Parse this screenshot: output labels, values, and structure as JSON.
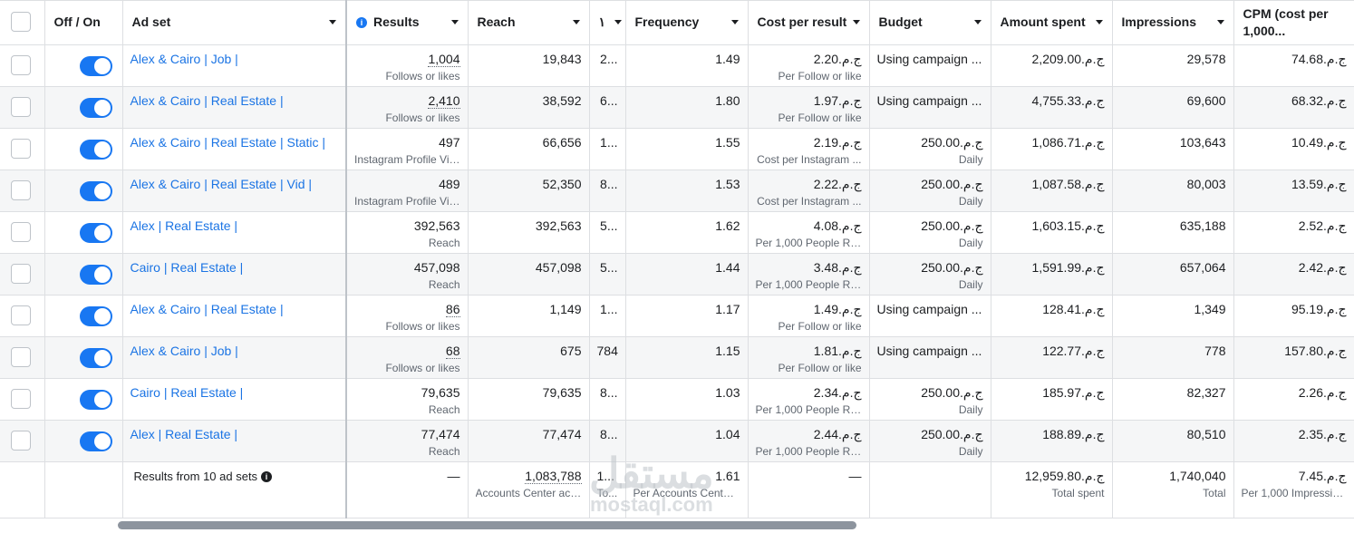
{
  "columns": {
    "off_on": "Off / On",
    "ad_set": "Ad set",
    "results": "Results",
    "reach": "Reach",
    "hidden": "١",
    "frequency": "Frequency",
    "cost_per_result": "Cost per result",
    "budget": "Budget",
    "amount_spent": "Amount spent",
    "impressions": "Impressions",
    "cpm": "CPM (cost per 1,000..."
  },
  "rows": [
    {
      "name": "Alex & Cairo | Job |",
      "enabled": true,
      "results": "1,004",
      "results_sub": "Follows or likes",
      "results_ul": true,
      "reach": "19,843",
      "col3": "2...",
      "frequency": "1.49",
      "cost": "ج.م.2.20",
      "cost_sub": "Per Follow or like",
      "budget": "Using campaign ...",
      "budget_sub": "",
      "spent": "ج.م.2,209.00",
      "impressions": "29,578",
      "cpm": "ج.م.74.68"
    },
    {
      "name": "Alex & Cairo | Real Estate |",
      "enabled": true,
      "results": "2,410",
      "results_sub": "Follows or likes",
      "results_ul": true,
      "reach": "38,592",
      "col3": "6...",
      "frequency": "1.80",
      "cost": "ج.م.1.97",
      "cost_sub": "Per Follow or like",
      "budget": "Using campaign ...",
      "budget_sub": "",
      "spent": "ج.م.4,755.33",
      "impressions": "69,600",
      "cpm": "ج.م.68.32"
    },
    {
      "name": "Alex & Cairo | Real Estate | Static |",
      "enabled": true,
      "results": "497",
      "results_sub": "Instagram Profile Vis...",
      "results_ul": false,
      "reach": "66,656",
      "col3": "1...",
      "frequency": "1.55",
      "cost": "ج.م.2.19",
      "cost_sub": "Cost per Instagram ...",
      "budget": "ج.م.250.00",
      "budget_sub": "Daily",
      "spent": "ج.م.1,086.71",
      "impressions": "103,643",
      "cpm": "ج.م.10.49"
    },
    {
      "name": "Alex & Cairo | Real Estate | Vid |",
      "enabled": true,
      "results": "489",
      "results_sub": "Instagram Profile Vis...",
      "results_ul": false,
      "reach": "52,350",
      "col3": "8...",
      "frequency": "1.53",
      "cost": "ج.م.2.22",
      "cost_sub": "Cost per Instagram ...",
      "budget": "ج.م.250.00",
      "budget_sub": "Daily",
      "spent": "ج.م.1,087.58",
      "impressions": "80,003",
      "cpm": "ج.م.13.59"
    },
    {
      "name": "Alex | Real Estate |",
      "enabled": true,
      "results": "392,563",
      "results_sub": "Reach",
      "results_ul": false,
      "reach": "392,563",
      "col3": "5...",
      "frequency": "1.62",
      "cost": "ج.م.4.08",
      "cost_sub": "Per 1,000 People Re...",
      "budget": "ج.م.250.00",
      "budget_sub": "Daily",
      "spent": "ج.م.1,603.15",
      "impressions": "635,188",
      "cpm": "ج.م.2.52"
    },
    {
      "name": "Cairo | Real Estate |",
      "enabled": true,
      "results": "457,098",
      "results_sub": "Reach",
      "results_ul": false,
      "reach": "457,098",
      "col3": "5...",
      "frequency": "1.44",
      "cost": "ج.م.3.48",
      "cost_sub": "Per 1,000 People Re...",
      "budget": "ج.م.250.00",
      "budget_sub": "Daily",
      "spent": "ج.م.1,591.99",
      "impressions": "657,064",
      "cpm": "ج.م.2.42"
    },
    {
      "name": "Alex & Cairo | Real Estate |",
      "enabled": true,
      "results": "86",
      "results_sub": "Follows or likes",
      "results_ul": true,
      "reach": "1,149",
      "col3": "1...",
      "frequency": "1.17",
      "cost": "ج.م.1.49",
      "cost_sub": "Per Follow or like",
      "budget": "Using campaign ...",
      "budget_sub": "",
      "spent": "ج.م.128.41",
      "impressions": "1,349",
      "cpm": "ج.م.95.19"
    },
    {
      "name": "Alex & Cairo | Job |",
      "enabled": true,
      "results": "68",
      "results_sub": "Follows or likes",
      "results_ul": true,
      "reach": "675",
      "col3": "784",
      "frequency": "1.15",
      "cost": "ج.م.1.81",
      "cost_sub": "Per Follow or like",
      "budget": "Using campaign ...",
      "budget_sub": "",
      "spent": "ج.م.122.77",
      "impressions": "778",
      "cpm": "ج.م.157.80"
    },
    {
      "name": "Cairo | Real Estate |",
      "enabled": true,
      "results": "79,635",
      "results_sub": "Reach",
      "results_ul": false,
      "reach": "79,635",
      "col3": "8...",
      "frequency": "1.03",
      "cost": "ج.م.2.34",
      "cost_sub": "Per 1,000 People Re...",
      "budget": "ج.م.250.00",
      "budget_sub": "Daily",
      "spent": "ج.م.185.97",
      "impressions": "82,327",
      "cpm": "ج.م.2.26"
    },
    {
      "name": "Alex | Real Estate |",
      "enabled": true,
      "results": "77,474",
      "results_sub": "Reach",
      "results_ul": false,
      "reach": "77,474",
      "col3": "8...",
      "frequency": "1.04",
      "cost": "ج.م.2.44",
      "cost_sub": "Per 1,000 People Re...",
      "budget": "ج.م.250.00",
      "budget_sub": "Daily",
      "spent": "ج.م.188.89",
      "impressions": "80,510",
      "cpm": "ج.م.2.35"
    }
  ],
  "totals": {
    "label": "Results from 10 ad sets",
    "results": "—",
    "reach": "1,083,788",
    "reach_sub": "Accounts Center acc...",
    "col3": "1...",
    "col3_sub": "To...",
    "frequency": "1.61",
    "frequency_sub": "Per Accounts Center...",
    "cost": "—",
    "spent": "ج.م.12,959.80",
    "spent_sub": "Total spent",
    "impressions": "1,740,040",
    "impressions_sub": "Total",
    "cpm": "ج.م.7.45",
    "cpm_sub": "Per 1,000 Impressions"
  },
  "watermark": {
    "arabic": "مستقل",
    "latin": "mostaql.com"
  },
  "icons": {
    "info": "info-icon",
    "sort": "chevron-down-icon"
  }
}
